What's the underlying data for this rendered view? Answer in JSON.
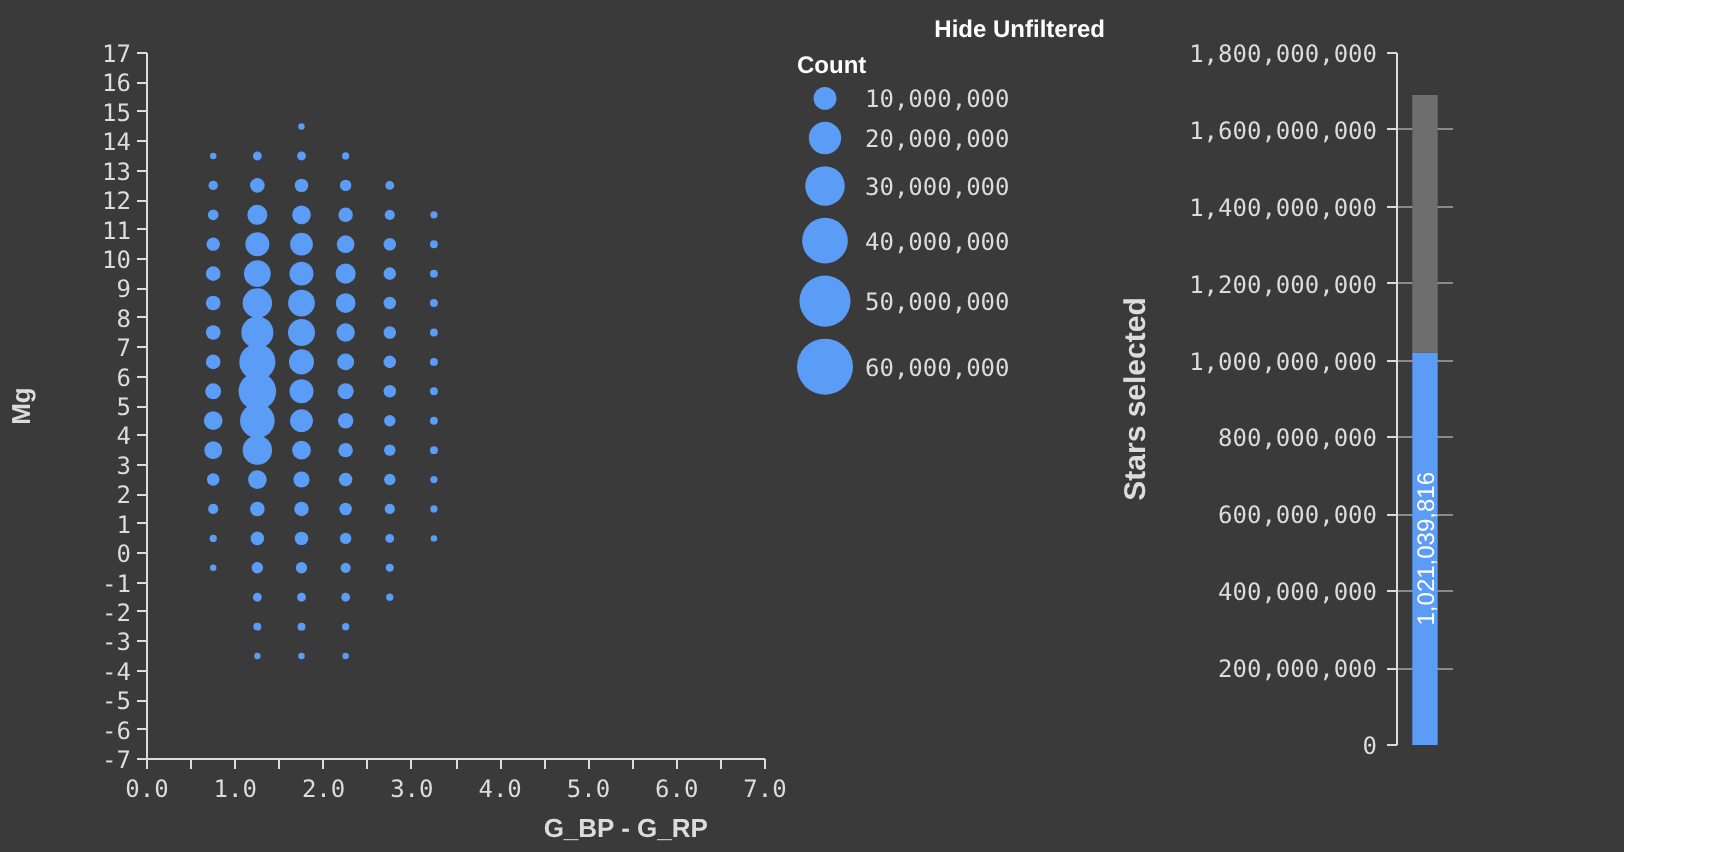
{
  "chart_data": [
    {
      "type": "bubble",
      "xlabel": "G_BP - G_RP",
      "ylabel": "Mg",
      "legend_title": "Count",
      "annotations": [
        "Hide Unfiltered"
      ],
      "size_legend": [
        {
          "value": 10000000,
          "label": "10,000,000"
        },
        {
          "value": 20000000,
          "label": "20,000,000"
        },
        {
          "value": 30000000,
          "label": "30,000,000"
        },
        {
          "value": 40000000,
          "label": "40,000,000"
        },
        {
          "value": 50000000,
          "label": "50,000,000"
        },
        {
          "value": 60000000,
          "label": "60,000,000"
        }
      ],
      "xlim": [
        0,
        7
      ],
      "xticks": [
        {
          "value": 0,
          "label": "0.0"
        },
        {
          "value": 0.5,
          "label": null
        },
        {
          "value": 1,
          "label": "1.0"
        },
        {
          "value": 1.5,
          "label": null
        },
        {
          "value": 2,
          "label": "2.0"
        },
        {
          "value": 2.5,
          "label": null
        },
        {
          "value": 3,
          "label": "3.0"
        },
        {
          "value": 3.5,
          "label": null
        },
        {
          "value": 4,
          "label": "4.0"
        },
        {
          "value": 4.5,
          "label": null
        },
        {
          "value": 5,
          "label": "5.0"
        },
        {
          "value": 5.5,
          "label": null
        },
        {
          "value": 6,
          "label": "6.0"
        },
        {
          "value": 6.5,
          "label": null
        },
        {
          "value": 7,
          "label": "7.0"
        }
      ],
      "ylim": [
        -7,
        17
      ],
      "yticks": [
        -7,
        -6,
        -5,
        -4,
        -3,
        -2,
        -1,
        0,
        1,
        2,
        3,
        4,
        5,
        6,
        7,
        8,
        9,
        10,
        11,
        12,
        13,
        14,
        15,
        16,
        17
      ],
      "series": [
        {
          "color": "#5b9cf6",
          "x": [
            0.75,
            0.75,
            0.75,
            0.75,
            0.75,
            0.75,
            0.75,
            0.75,
            0.75,
            0.75,
            0.75,
            0.75,
            0.75,
            0.75,
            0.75
          ],
          "values": [
            13.5,
            12.5,
            11.5,
            10.5,
            9.5,
            8.5,
            7.5,
            6.5,
            5.5,
            4.5,
            3.5,
            2.5,
            1.5,
            0.5,
            -0.5
          ],
          "sizes": [
            800000.0,
            1700000.0,
            2200000.0,
            3400000.0,
            4100000.0,
            4100000.0,
            4100000.0,
            4100000.0,
            4900000.0,
            6700000.0,
            6000000.0,
            3000000.0,
            2000000.0,
            1000000.0,
            800000.0
          ]
        },
        {
          "color": "#5b9cf6",
          "x": [
            1.25,
            1.25,
            1.25,
            1.25,
            1.25,
            1.25,
            1.25,
            1.25,
            1.25,
            1.25,
            1.25,
            1.25,
            1.25,
            1.25,
            1.25,
            1.25,
            1.25,
            1.25
          ],
          "values": [
            13.5,
            12.5,
            11.5,
            10.5,
            9.5,
            8.5,
            7.5,
            6.5,
            5.5,
            4.5,
            3.5,
            2.5,
            1.5,
            0.5,
            -0.5,
            -1.5,
            -2.5,
            -3.5
          ],
          "sizes": [
            1500000.0,
            4100000.0,
            7700000.0,
            11000000.0,
            13700000.0,
            16600000.0,
            19700000.0,
            25000000.0,
            27000000.0,
            23000000.0,
            16600000.0,
            6700000.0,
            4100000.0,
            3500000.0,
            2500000.0,
            1500000.0,
            1200000.0,
            800000.0
          ]
        },
        {
          "color": "#5b9cf6",
          "x": [
            1.75,
            1.75,
            1.75,
            1.75,
            1.75,
            1.75,
            1.75,
            1.75,
            1.75,
            1.75,
            1.75,
            1.75,
            1.75,
            1.75,
            1.75,
            1.75,
            1.75,
            1.75,
            1.75
          ],
          "values": [
            14.5,
            13.5,
            12.5,
            11.5,
            10.5,
            9.5,
            8.5,
            7.5,
            6.5,
            5.5,
            4.5,
            3.5,
            2.5,
            1.5,
            0.5,
            -0.5,
            -1.5,
            -2.5,
            -3.5
          ],
          "sizes": [
            800000.0,
            1500000.0,
            3500000.0,
            6700000.0,
            9900000.0,
            11000000.0,
            13700000.0,
            14000000.0,
            12000000.0,
            11000000.0,
            10000000.0,
            6700000.0,
            5000000.0,
            4000000.0,
            3500000.0,
            2500000.0,
            1500000.0,
            1200000.0,
            800000.0
          ]
        },
        {
          "color": "#5b9cf6",
          "x": [
            2.25,
            2.25,
            2.25,
            2.25,
            2.25,
            2.25,
            2.25,
            2.25,
            2.25,
            2.25,
            2.25,
            2.25,
            2.25,
            2.25,
            2.25,
            2.25,
            2.25,
            2.25
          ],
          "values": [
            13.5,
            12.5,
            11.5,
            10.5,
            9.5,
            8.5,
            7.5,
            6.5,
            5.5,
            4.5,
            3.5,
            2.5,
            1.5,
            0.5,
            -0.5,
            -1.5,
            -2.5,
            -3.5
          ],
          "sizes": [
            1000000.0,
            2500000.0,
            4000000.0,
            6000000.0,
            7700000.0,
            7500000.0,
            6500000.0,
            5500000.0,
            5000000.0,
            4500000.0,
            4000000.0,
            3500000.0,
            3000000.0,
            2500000.0,
            2000000.0,
            1500000.0,
            1000000.0,
            800000.0
          ]
        },
        {
          "color": "#5b9cf6",
          "x": [
            2.75,
            2.75,
            2.75,
            2.75,
            2.75,
            2.75,
            2.75,
            2.75,
            2.75,
            2.75,
            2.75,
            2.75,
            2.75,
            2.75,
            2.75
          ],
          "values": [
            12.5,
            11.5,
            10.5,
            9.5,
            8.5,
            7.5,
            6.5,
            5.5,
            4.5,
            3.5,
            2.5,
            1.5,
            0.5,
            -0.5,
            -1.5
          ],
          "sizes": [
            1500000.0,
            2000000.0,
            3000000.0,
            3000000.0,
            3000000.0,
            3000000.0,
            3000000.0,
            3000000.0,
            2500000.0,
            2500000.0,
            2500000.0,
            2000000.0,
            1500000.0,
            1200000.0,
            1000000.0
          ]
        },
        {
          "color": "#5b9cf6",
          "x": [
            3.25,
            3.25,
            3.25,
            3.25,
            3.25,
            3.25,
            3.25,
            3.25,
            3.25,
            3.25,
            3.25,
            3.25
          ],
          "values": [
            11.5,
            10.5,
            9.5,
            8.5,
            7.5,
            6.5,
            5.5,
            4.5,
            3.5,
            2.5,
            1.5,
            0.5
          ],
          "sizes": [
            1000000.0,
            1200000.0,
            1200000.0,
            1200000.0,
            1200000.0,
            1200000.0,
            1200000.0,
            1200000.0,
            1200000.0,
            1000000.0,
            1000000.0,
            800000.0
          ]
        }
      ]
    },
    {
      "type": "bar",
      "categories": [
        null
      ],
      "stacked": true,
      "ylabel": "Stars selected",
      "ylim": [
        0,
        1800000000
      ],
      "yticks": [
        {
          "value": 0,
          "label": "0"
        },
        {
          "value": 200000000,
          "label": "200,000,000"
        },
        {
          "value": 400000000,
          "label": "400,000,000"
        },
        {
          "value": 600000000,
          "label": "600,000,000"
        },
        {
          "value": 800000000,
          "label": "800,000,000"
        },
        {
          "value": 1000000000,
          "label": "1,000,000,000"
        },
        {
          "value": 1200000000,
          "label": "1,200,000,000"
        },
        {
          "value": 1400000000,
          "label": "1,400,000,000"
        },
        {
          "value": 1600000000,
          "label": "1,600,000,000"
        },
        {
          "value": 1800000000,
          "label": "1,800,000,000"
        }
      ],
      "grid": "y",
      "series": [
        {
          "color": "#5b9cf6",
          "values": [
            1021039816
          ],
          "value_labels": [
            "1,021,039,816"
          ]
        },
        {
          "color": "#6e6e6e",
          "values": [
            670000000
          ]
        }
      ]
    }
  ]
}
